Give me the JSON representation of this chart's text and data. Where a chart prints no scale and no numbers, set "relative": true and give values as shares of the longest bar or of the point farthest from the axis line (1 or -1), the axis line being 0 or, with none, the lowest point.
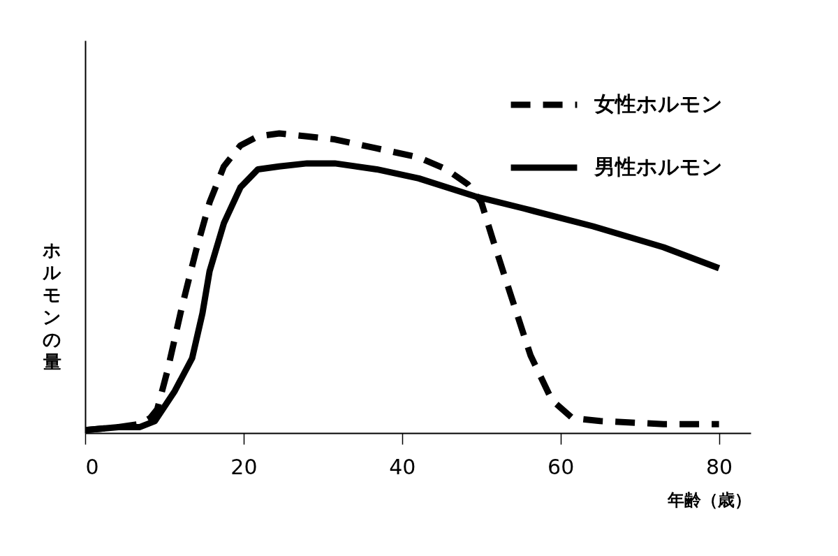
{
  "chart_data": {
    "type": "line",
    "relative": true,
    "xlabel": "年齢（歳）",
    "ylabel": "ホルモンの量",
    "xlim": [
      0,
      84
    ],
    "xticks": [
      0,
      20,
      40,
      60,
      80
    ],
    "legend": "top right",
    "grid": false,
    "series": [
      {
        "name": "女性ホルモン",
        "color": "#000000",
        "line_style": "dashed",
        "x": [
          0,
          4.2,
          6.9,
          8.2,
          9.1,
          10.4,
          12.2,
          14,
          15.7,
          17.5,
          19.6,
          21.8,
          24.5,
          28,
          31.5,
          36.8,
          42.1,
          45.6,
          48.3,
          50,
          51.4,
          53.6,
          56.2,
          58.9,
          61.5,
          65,
          73,
          80
        ],
        "values": [
          0.01,
          0.02,
          0.03,
          0.05,
          0.08,
          0.21,
          0.42,
          0.61,
          0.77,
          0.89,
          0.96,
          0.99,
          1,
          0.99,
          0.98,
          0.95,
          0.92,
          0.88,
          0.83,
          0.77,
          0.65,
          0.47,
          0.26,
          0.11,
          0.05,
          0.04,
          0.03,
          0.03
        ]
      },
      {
        "name": "男性ホルモン",
        "color": "#000000",
        "line_style": "solid",
        "x": [
          0,
          4.2,
          6.9,
          8.8,
          11.3,
          13.5,
          14.8,
          15.7,
          17.5,
          19.6,
          21.8,
          24.5,
          28,
          31.5,
          36.8,
          42.1,
          49.2,
          55.3,
          64.1,
          73,
          80
        ],
        "values": [
          0.01,
          0.02,
          0.02,
          0.04,
          0.14,
          0.25,
          0.4,
          0.54,
          0.7,
          0.82,
          0.88,
          0.89,
          0.9,
          0.9,
          0.88,
          0.85,
          0.79,
          0.75,
          0.69,
          0.62,
          0.55
        ]
      }
    ]
  }
}
